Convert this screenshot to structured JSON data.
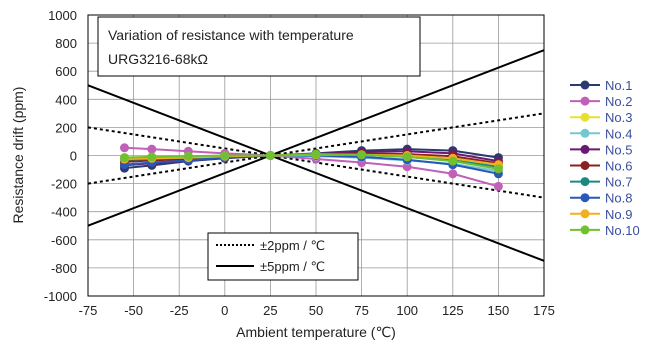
{
  "chart_data": {
    "type": "line",
    "title": "Variation of resistance with temperature",
    "subtitle": "URG3216-68kΩ",
    "xlabel": "Ambient temperature (℃)",
    "ylabel": "Resistance drift (ppm)",
    "xlim": [
      -75,
      175
    ],
    "ylim": [
      -1000,
      1000
    ],
    "x_ticks": [
      -75,
      -50,
      -25,
      0,
      25,
      50,
      75,
      100,
      125,
      150,
      175
    ],
    "y_ticks": [
      1000,
      800,
      600,
      400,
      200,
      0,
      -200,
      -400,
      -600,
      -800,
      -1000
    ],
    "grid": true,
    "legend_position": "right",
    "x": [
      -55,
      -40,
      -20,
      0,
      25,
      50,
      75,
      100,
      125,
      150
    ],
    "series": [
      {
        "name": "No.1",
        "color": "#2a3a6e",
        "values": [
          -90,
          -70,
          -40,
          -20,
          0,
          15,
          35,
          45,
          35,
          -15
        ]
      },
      {
        "name": "No.2",
        "color": "#c060b8",
        "values": [
          55,
          45,
          30,
          15,
          0,
          -25,
          -50,
          -80,
          -130,
          -220
        ]
      },
      {
        "name": "No.3",
        "color": "#e8e030",
        "values": [
          -40,
          -30,
          -20,
          -10,
          0,
          5,
          5,
          -5,
          -25,
          -60
        ]
      },
      {
        "name": "No.4",
        "color": "#70c8d0",
        "values": [
          -20,
          -15,
          -10,
          -5,
          0,
          -5,
          -15,
          -35,
          -60,
          -110
        ]
      },
      {
        "name": "No.5",
        "color": "#6a1a70",
        "values": [
          -70,
          -55,
          -35,
          -15,
          0,
          10,
          25,
          30,
          15,
          -40
        ]
      },
      {
        "name": "No.6",
        "color": "#8a2020",
        "values": [
          -45,
          -35,
          -25,
          -10,
          0,
          10,
          15,
          10,
          -5,
          -55
        ]
      },
      {
        "name": "No.7",
        "color": "#1a8a80",
        "values": [
          -30,
          -25,
          -15,
          -10,
          0,
          5,
          5,
          -10,
          -35,
          -80
        ]
      },
      {
        "name": "No.8",
        "color": "#2858b8",
        "values": [
          -65,
          -50,
          -35,
          -15,
          0,
          0,
          -10,
          -30,
          -65,
          -130
        ]
      },
      {
        "name": "No.9",
        "color": "#f0b020",
        "values": [
          -25,
          -20,
          -15,
          -5,
          0,
          5,
          5,
          0,
          -20,
          -65
        ]
      },
      {
        "name": "No.10",
        "color": "#70c030",
        "values": [
          -15,
          -10,
          -5,
          0,
          0,
          10,
          5,
          -10,
          -40,
          -95
        ]
      }
    ],
    "reference_lines": [
      {
        "label": "±2ppm / ℃",
        "ppm_per_c": 2,
        "style": "dotted"
      },
      {
        "label": "±5ppm / ℃",
        "ppm_per_c": 5,
        "style": "solid"
      }
    ]
  }
}
